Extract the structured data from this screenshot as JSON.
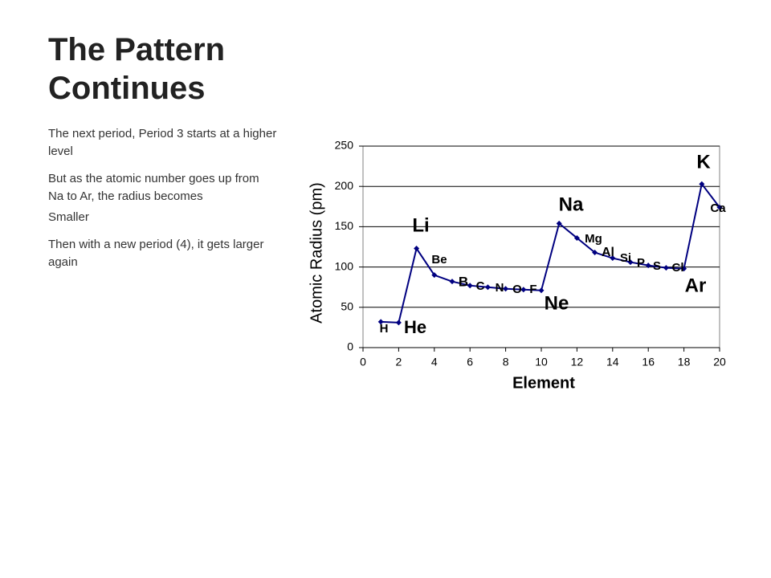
{
  "slide": {
    "title": "The Pattern Continues",
    "paragraphs": [
      "The next period, Period 3 starts at a higher level",
      "But as the atomic number goes up from Na to Ar, the radius becomes",
      "Smaller",
      "Then with a new period (4), it gets larger again"
    ]
  },
  "chart_data": {
    "type": "line",
    "x_label": "Element",
    "y_label": "Atomic Radius (pm)",
    "x": [
      1,
      2,
      3,
      4,
      5,
      6,
      7,
      8,
      9,
      10,
      11,
      12,
      13,
      14,
      15,
      16,
      17,
      18,
      19,
      20
    ],
    "point_labels": [
      "H",
      "He",
      "Li",
      "Be",
      "B",
      "C",
      "N",
      "O",
      "F",
      "Ne",
      "Na",
      "Mg",
      "Al",
      "Si",
      "P",
      "S",
      "Cl",
      "Ar",
      "K",
      "Ca"
    ],
    "series": [
      {
        "color": "#000080",
        "values": [
          32,
          31,
          123,
          90,
          82,
          77,
          75,
          73,
          72,
          71,
          154,
          136,
          118,
          111,
          106,
          102,
          99,
          98,
          203,
          174
        ]
      }
    ],
    "xlim": [
      0,
      20
    ],
    "xticks": [
      0,
      2,
      4,
      6,
      8,
      10,
      12,
      14,
      16,
      18,
      20
    ],
    "ylim": [
      0,
      250
    ],
    "yticks": [
      0,
      50,
      100,
      150,
      200,
      250
    ],
    "grid": true
  }
}
